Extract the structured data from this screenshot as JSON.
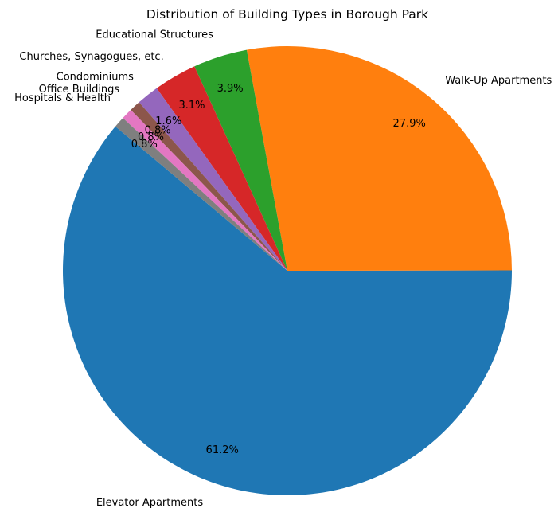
{
  "chart_data": {
    "type": "pie",
    "title": "Distribution of Building Types in Borough Park",
    "start_angle_deg": 140,
    "direction": "counterclockwise",
    "slices": [
      {
        "label": "Elevator Apartments",
        "value": 61.2,
        "pct_label": "61.2%",
        "color": "#1f77b4"
      },
      {
        "label": "Walk-Up Apartments",
        "value": 27.9,
        "pct_label": "27.9%",
        "color": "#ff7f0e"
      },
      {
        "label": "Educational Structures",
        "value": 3.9,
        "pct_label": "3.9%",
        "color": "#2ca02c"
      },
      {
        "label": "Churches, Synagogues, etc.",
        "value": 3.1,
        "pct_label": "3.1%",
        "color": "#d62728"
      },
      {
        "label": "Condominiums",
        "value": 1.6,
        "pct_label": "1.6%",
        "color": "#9467bd"
      },
      {
        "label": "Office Buildings",
        "value": 0.8,
        "pct_label": "0.8%",
        "color": "#8c564b"
      },
      {
        "label": "Hospitals & Health",
        "value": 0.8,
        "pct_label": "0.8%",
        "color": "#e377c2"
      },
      {
        "label": "",
        "value": 0.8,
        "pct_label": "0.8%",
        "color": "#7f7f7f"
      }
    ]
  }
}
